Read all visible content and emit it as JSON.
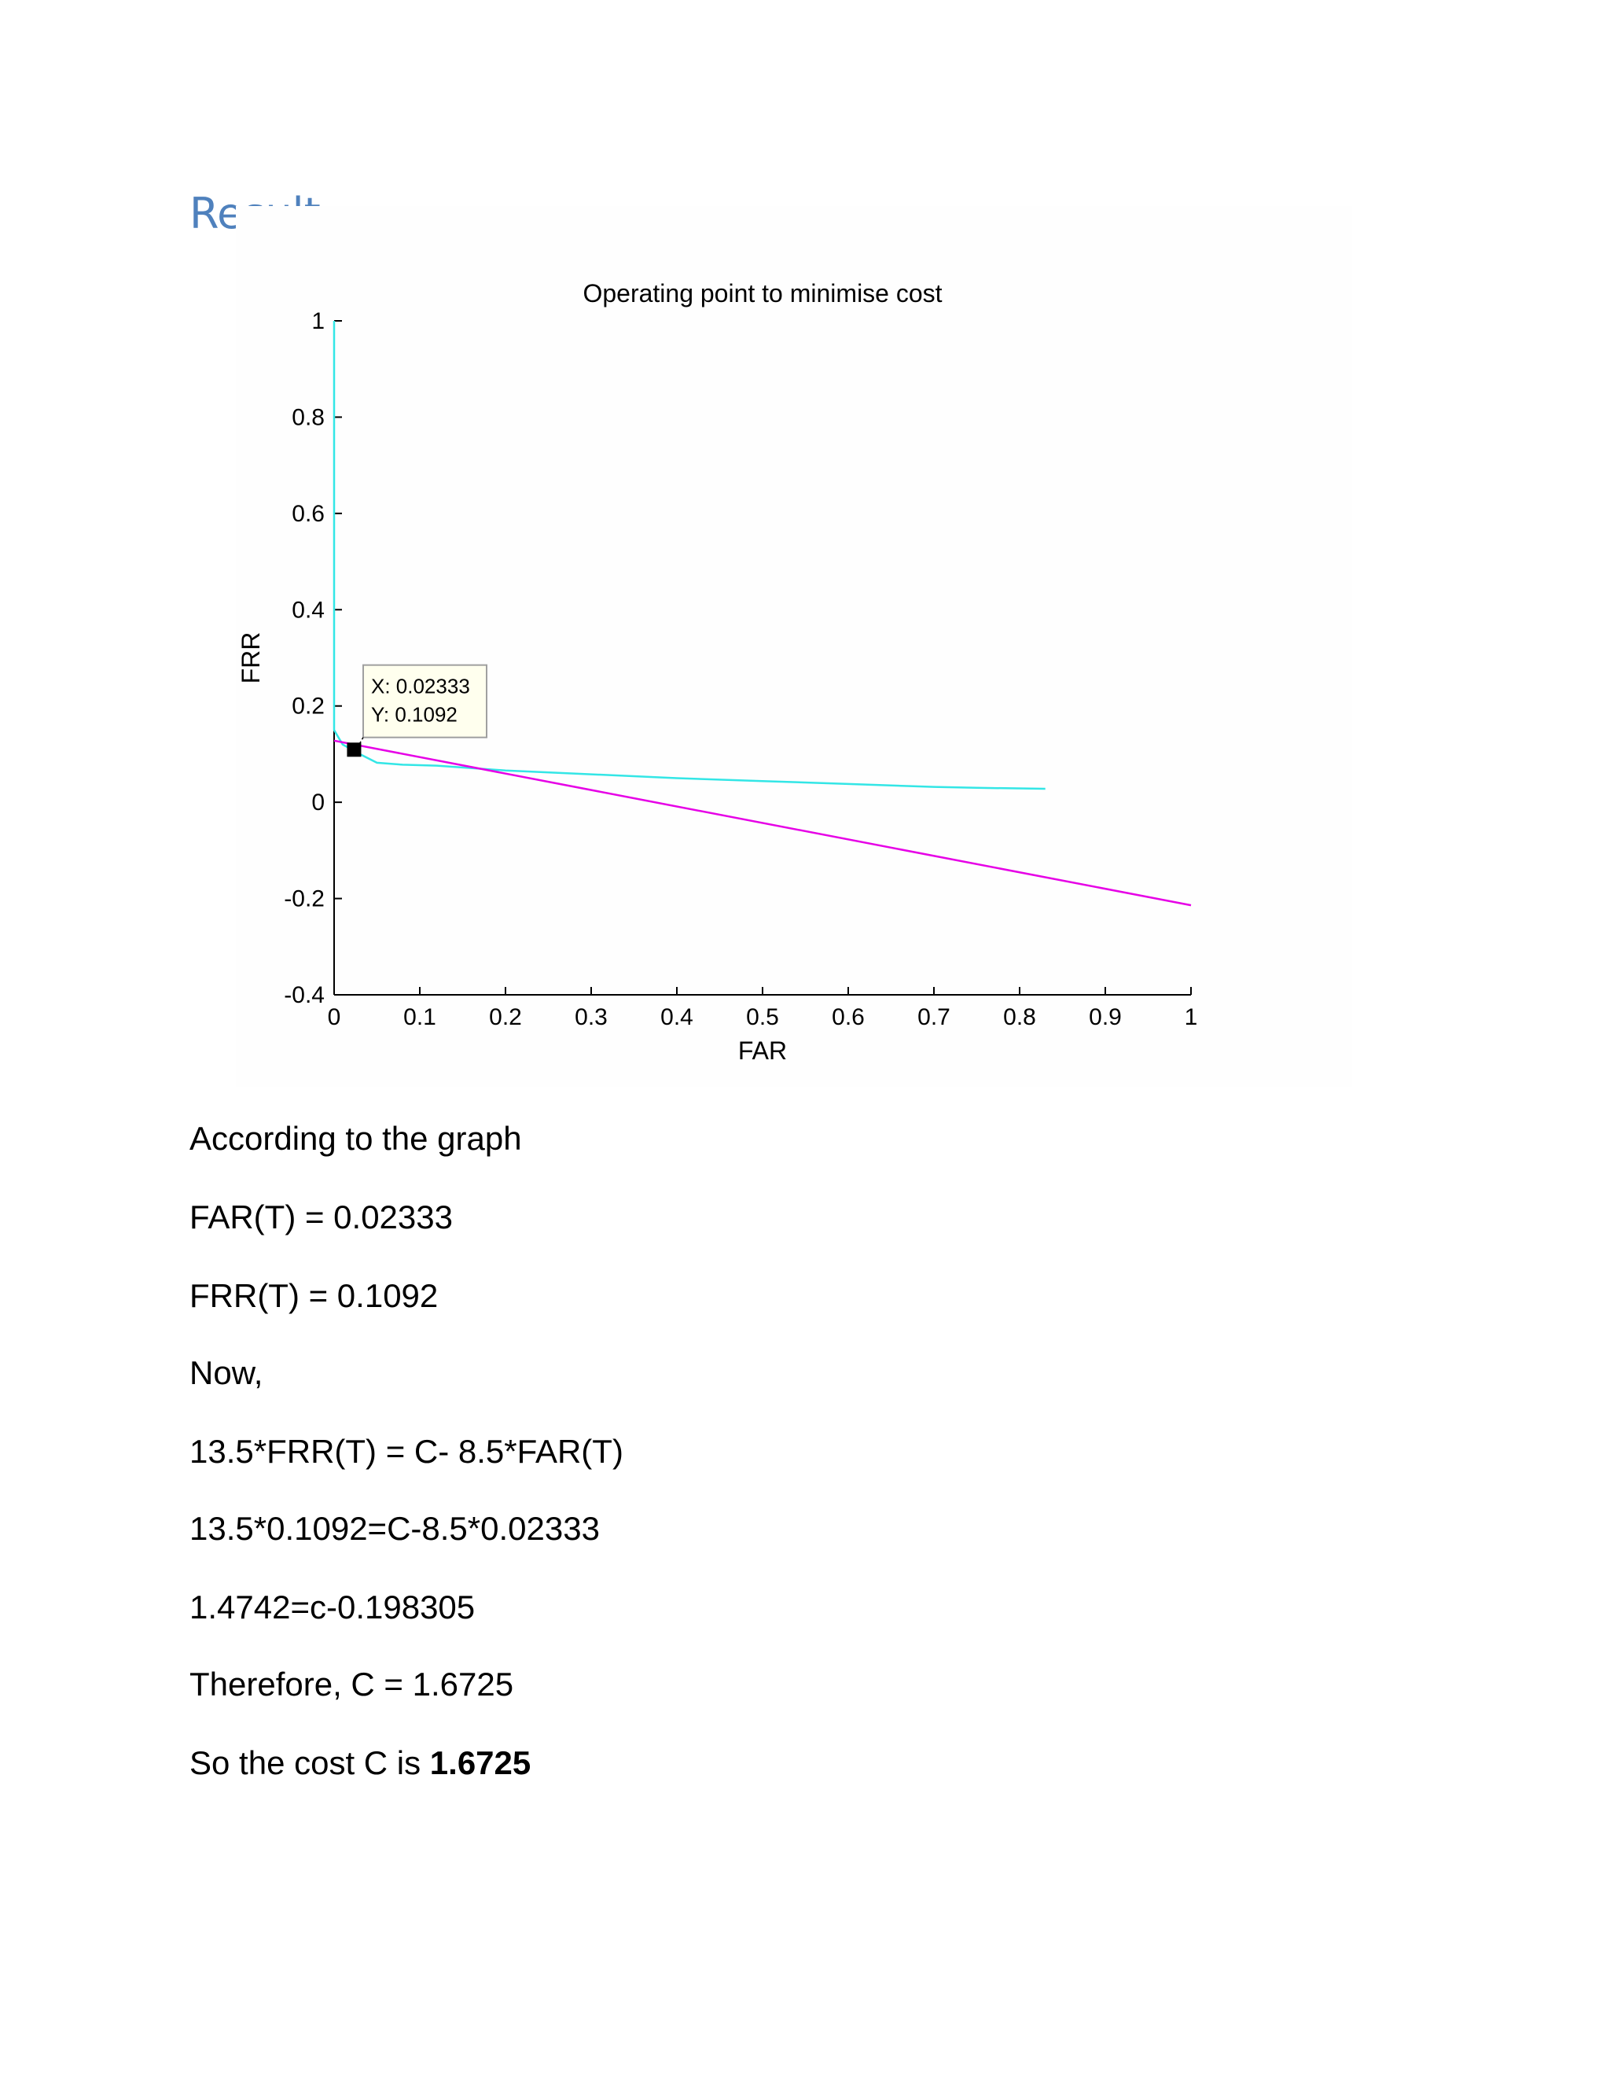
{
  "heading": "Result",
  "chart_data": {
    "type": "line",
    "title": "Operating point to minimise cost",
    "xlabel": "FAR",
    "ylabel": "FRR",
    "xlim": [
      0,
      1
    ],
    "ylim": [
      -0.4,
      1
    ],
    "x_ticks": [
      "0",
      "0.1",
      "0.2",
      "0.3",
      "0.4",
      "0.5",
      "0.6",
      "0.7",
      "0.8",
      "0.9",
      "1"
    ],
    "y_ticks": [
      "-0.4",
      "-0.2",
      "0",
      "0.2",
      "0.4",
      "0.6",
      "0.8",
      "1"
    ],
    "grid": false,
    "series": [
      {
        "color": "#33e6e6",
        "x": [
          0,
          0,
          0,
          0.005,
          0.01,
          0.02,
          0.03,
          0.05,
          0.08,
          0.12,
          0.2,
          0.3,
          0.4,
          0.5,
          0.6,
          0.7,
          0.75,
          0.83
        ],
        "y": [
          1,
          0.5,
          0.15,
          0.135,
          0.12,
          0.11,
          0.1,
          0.082,
          0.078,
          0.076,
          0.066,
          0.058,
          0.05,
          0.044,
          0.038,
          0.032,
          0.03,
          0.028
        ]
      },
      {
        "color": "#e600e6",
        "x": [
          0,
          1
        ],
        "y": [
          0.128,
          -0.214
        ]
      }
    ],
    "marker": {
      "x": 0.02333,
      "y": 0.1092,
      "color": "#000000"
    },
    "datatip": {
      "x_text": "X: 0.02333",
      "y_text": "Y: 0.1092"
    }
  },
  "lines": [
    "According to the graph",
    "FAR(T) = 0.02333",
    "FRR(T) = 0.1092",
    "Now,",
    "13.5*FRR(T) = C- 8.5*FAR(T)",
    "13.5*0.1092=C-8.5*0.02333",
    "1.4742=c-0.198305",
    "Therefore, C = 1.6725"
  ],
  "conclusion": {
    "prefix": "So the cost C is ",
    "value": "1.6725"
  }
}
